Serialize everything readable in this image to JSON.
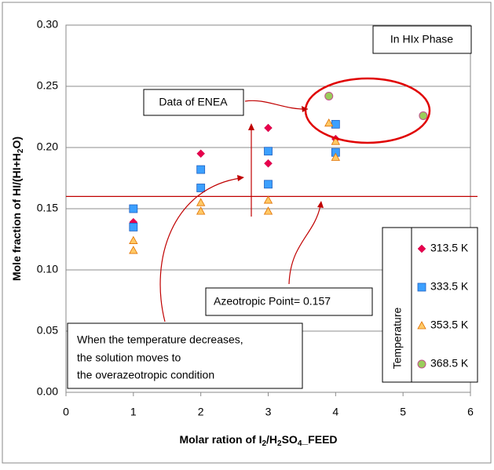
{
  "chart_data": {
    "type": "scatter",
    "x_label": [
      "Molar ration of I",
      "2",
      "/H",
      "2",
      "SO",
      "4",
      "_FEED"
    ],
    "y_label": [
      "Mole fraction of HI/(HI+H",
      "2",
      "O)"
    ],
    "xlim": [
      0,
      6
    ],
    "xticks": [
      0,
      1,
      2,
      3,
      4,
      5,
      6
    ],
    "ylim": [
      0,
      0.3
    ],
    "yticks": [
      {
        "value": 0,
        "label": "0.00"
      },
      {
        "value": 0.05,
        "label": "0.05"
      },
      {
        "value": 0.1,
        "label": "0.10"
      },
      {
        "value": 0.15,
        "label": "0.15"
      },
      {
        "value": 0.2,
        "label": "0.20"
      },
      {
        "value": 0.25,
        "label": "0.25"
      },
      {
        "value": 0.3,
        "label": "0.30"
      }
    ],
    "grid": true,
    "legend_title": "Temperature",
    "series": [
      {
        "name": "313.5 K",
        "marker": "diamond",
        "color": "#e8004c",
        "x": [
          1,
          2,
          3,
          3,
          4
        ],
        "values": [
          0.139,
          0.195,
          0.216,
          0.187,
          0.207
        ]
      },
      {
        "name": "333.5 K",
        "marker": "square",
        "color": "#3ca0ff",
        "x": [
          1,
          1,
          2,
          2,
          3,
          3,
          4,
          4
        ],
        "values": [
          0.15,
          0.135,
          0.182,
          0.167,
          0.197,
          0.17,
          0.219,
          0.196
        ]
      },
      {
        "name": "353.5 K",
        "marker": "triangle",
        "color": "#ffc966",
        "x": [
          1,
          1,
          2,
          2,
          3,
          3,
          3.9,
          4,
          4
        ],
        "values": [
          0.124,
          0.116,
          0.155,
          0.148,
          0.157,
          0.148,
          0.22,
          0.205,
          0.192
        ]
      },
      {
        "name": "368.5 K",
        "marker": "circle",
        "color": "#9acd5a",
        "x": [
          3.9,
          5.3
        ],
        "values": [
          0.242,
          0.226
        ]
      }
    ],
    "reference_line": 0.16,
    "annotations": {
      "phase": "In HIx Phase",
      "enea": "Data of ENEA",
      "azeotropic": "Azeotropic Point= 0.157",
      "temperature_note": [
        "When the temperature decreases,",
        "the solution moves to",
        "the overazeotropic condition"
      ]
    }
  }
}
